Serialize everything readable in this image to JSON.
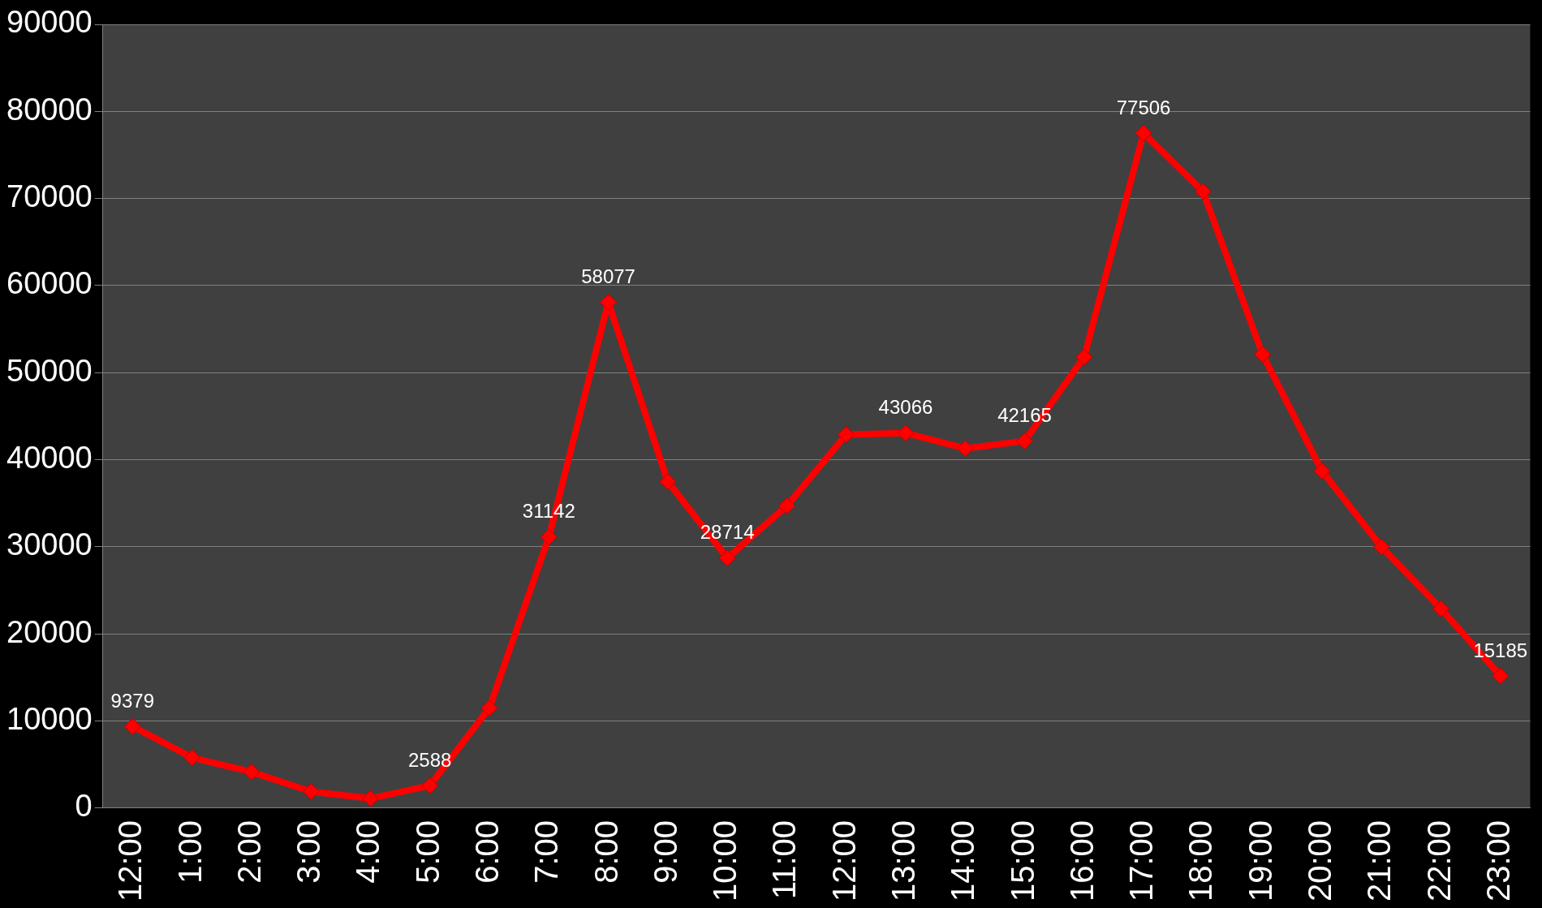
{
  "chart_data": {
    "type": "line",
    "categories": [
      "12:00",
      "1:00",
      "2:00",
      "3:00",
      "4:00",
      "5:00",
      "6:00",
      "7:00",
      "8:00",
      "9:00",
      "10:00",
      "11:00",
      "12:00",
      "13:00",
      "14:00",
      "15:00",
      "16:00",
      "17:00",
      "18:00",
      "19:00",
      "20:00",
      "21:00",
      "22:00",
      "23:00"
    ],
    "series": [
      {
        "color": "#ff0000",
        "values": [
          9379,
          5800,
          4150,
          1900,
          1100,
          2588,
          11500,
          31142,
          58077,
          37500,
          28714,
          34700,
          42900,
          43066,
          41300,
          42165,
          51800,
          77506,
          70800,
          52100,
          38700,
          30000,
          22900,
          15185
        ],
        "value_labels": [
          "9379",
          null,
          null,
          null,
          null,
          "2588",
          null,
          "31142",
          "58077",
          null,
          "28714",
          null,
          null,
          "43066",
          null,
          "42165",
          null,
          "77506",
          null,
          null,
          null,
          null,
          null,
          "15185"
        ]
      }
    ],
    "ylim": [
      0,
      90000
    ],
    "yticks": [
      0,
      10000,
      20000,
      30000,
      40000,
      50000,
      60000,
      70000,
      80000,
      90000
    ],
    "grid": "y",
    "legend": false,
    "marker": "diamond",
    "line_style": "solid"
  }
}
